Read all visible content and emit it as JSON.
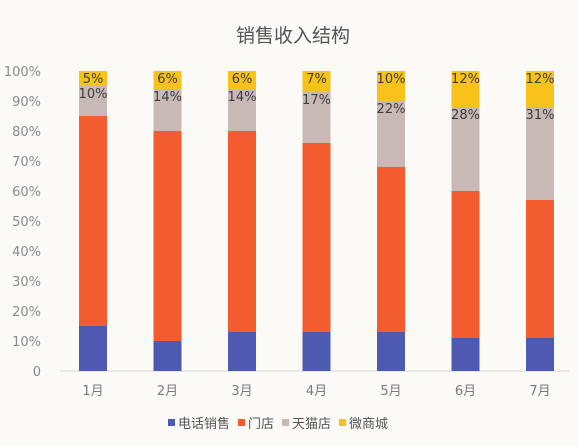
{
  "chart_data": {
    "type": "bar",
    "stacked": true,
    "percent": true,
    "title": "销售收入结构",
    "xlabel": "",
    "ylabel": "",
    "ylim": [
      0,
      100
    ],
    "yticks": [
      "0",
      "10%",
      "20%",
      "30%",
      "40%",
      "50%",
      "60%",
      "70%",
      "80%",
      "90%",
      "100%"
    ],
    "categories": [
      "1月",
      "2月",
      "3月",
      "4月",
      "5月",
      "6月",
      "7月"
    ],
    "series": [
      {
        "name": "电话销售",
        "color": "#4e59b2",
        "values": [
          15,
          10,
          13,
          13,
          13,
          11,
          11
        ]
      },
      {
        "name": "门店",
        "color": "#f25c2e",
        "values": [
          70,
          70,
          67,
          63,
          55,
          49,
          46
        ]
      },
      {
        "name": "天猫店",
        "color": "#c9b9b6",
        "values": [
          10,
          14,
          14,
          17,
          22,
          28,
          31
        ]
      },
      {
        "name": "微商城",
        "color": "#f7c21a",
        "values": [
          5,
          6,
          6,
          7,
          10,
          12,
          12
        ]
      }
    ],
    "segment_labels": {
      "天猫店": [
        "10%",
        "14%",
        "14%",
        "17%",
        "22%",
        "28%",
        "31%"
      ],
      "微商城": [
        "5%",
        "6%",
        "6%",
        "7%",
        "10%",
        "12%",
        "12%"
      ]
    },
    "legend_position": "bottom",
    "grid": false
  }
}
